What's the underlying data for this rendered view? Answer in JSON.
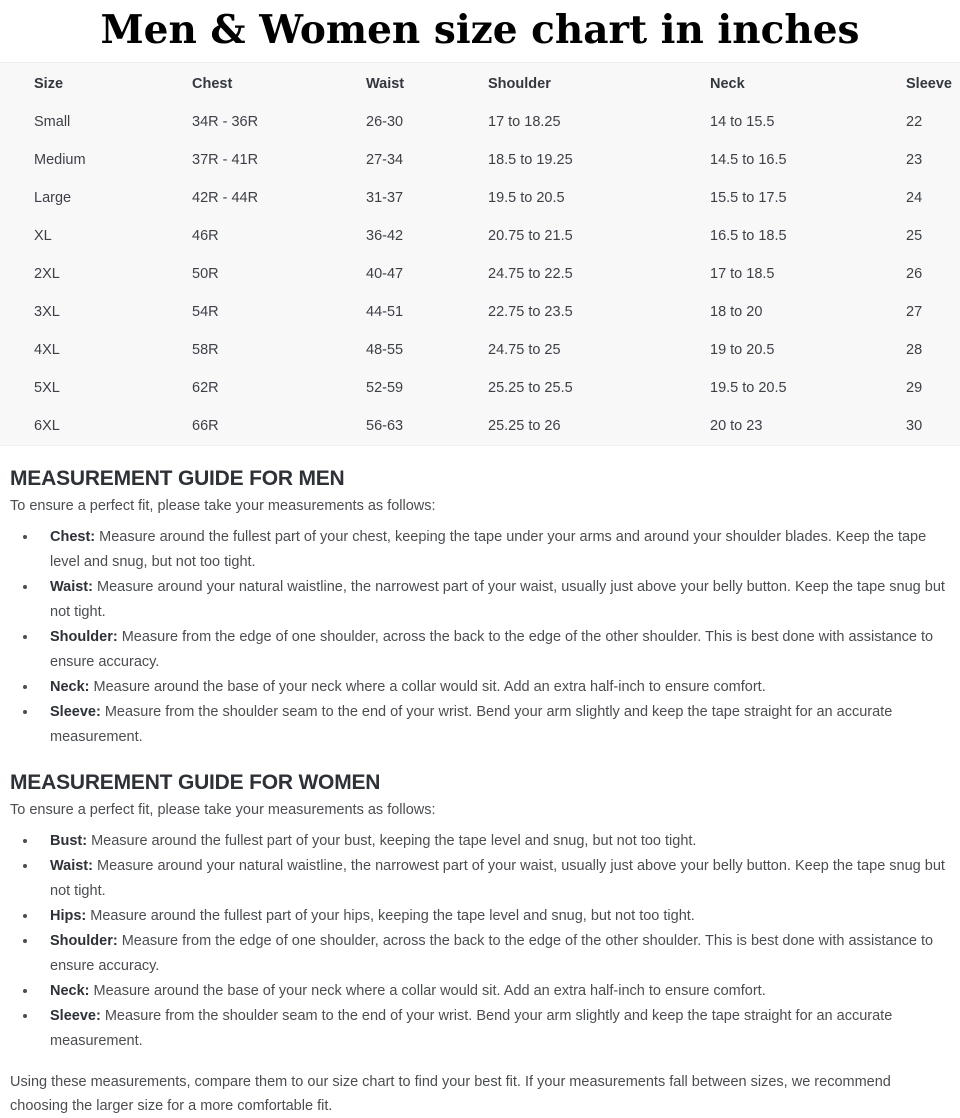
{
  "title": "Men & Women size chart in inches",
  "colors": {
    "table_background": "#f8f8f8",
    "heading_text": "#2d3138",
    "body_text": "#4a4d52",
    "title_text": "#000000"
  },
  "table": {
    "headers": [
      "Size",
      "Chest",
      "Waist",
      "Shoulder",
      "Neck",
      "Sleeve"
    ],
    "rows": [
      [
        "Small",
        "34R - 36R",
        "26-30",
        "17 to 18.25",
        "14 to 15.5",
        "22"
      ],
      [
        "Medium",
        "37R - 41R",
        "27-34",
        "18.5 to 19.25",
        "14.5 to 16.5",
        "23"
      ],
      [
        "Large",
        "42R - 44R",
        "31-37",
        "19.5 to 20.5",
        "15.5 to 17.5",
        "24"
      ],
      [
        "XL",
        "46R",
        "36-42",
        "20.75 to 21.5",
        "16.5 to 18.5",
        "25"
      ],
      [
        "2XL",
        "50R",
        "40-47",
        "24.75 to 22.5",
        "17 to 18.5",
        "26"
      ],
      [
        "3XL",
        "54R",
        "44-51",
        "22.75 to 23.5",
        "18 to 20",
        "27"
      ],
      [
        "4XL",
        "58R",
        "48-55",
        "24.75 to 25",
        "19 to 20.5",
        "28"
      ],
      [
        "5XL",
        "62R",
        "52-59",
        "25.25 to 25.5",
        "19.5 to 20.5",
        "29"
      ],
      [
        "6XL",
        "66R",
        "56-63",
        "25.25 to 26",
        "20 to 23",
        "30"
      ]
    ]
  },
  "men_guide": {
    "heading": "MEASUREMENT GUIDE FOR MEN",
    "intro": "To ensure a perfect fit, please take your measurements as follows:",
    "items": [
      {
        "label": "Chest:",
        "text": "Measure around the fullest part of your chest, keeping the tape under your arms and around your shoulder blades. Keep the tape level and snug, but not too tight."
      },
      {
        "label": "Waist:",
        "text": "Measure around your natural waistline, the narrowest part of your waist, usually just above your belly button. Keep the tape snug but not tight."
      },
      {
        "label": "Shoulder:",
        "text": "Measure from the edge of one shoulder, across the back to the edge of the other shoulder. This is best done with assistance to ensure accuracy."
      },
      {
        "label": "Neck:",
        "text": "Measure around the base of your neck where a collar would sit. Add an extra half-inch to ensure comfort."
      },
      {
        "label": "Sleeve:",
        "text": "Measure from the shoulder seam to the end of your wrist. Bend your arm slightly and keep the tape straight for an accurate measurement."
      }
    ]
  },
  "women_guide": {
    "heading": "MEASUREMENT GUIDE FOR WOMEN",
    "intro": "To ensure a perfect fit, please take your measurements as follows:",
    "items": [
      {
        "label": "Bust:",
        "text": "Measure around the fullest part of your bust, keeping the tape level and snug, but not too tight."
      },
      {
        "label": "Waist:",
        "text": "Measure around your natural waistline, the narrowest part of your waist, usually just above your belly button. Keep the tape snug but not tight."
      },
      {
        "label": "Hips:",
        "text": "Measure around the fullest part of your hips, keeping the tape level and snug, but not too tight."
      },
      {
        "label": "Shoulder:",
        "text": "Measure from the edge of one shoulder, across the back to the edge of the other shoulder. This is best done with assistance to ensure accuracy."
      },
      {
        "label": "Neck:",
        "text": "Measure around the base of your neck where a collar would sit. Add an extra half-inch to ensure comfort."
      },
      {
        "label": "Sleeve:",
        "text": "Measure from the shoulder seam to the end of your wrist. Bend your arm slightly and keep the tape straight for an accurate measurement."
      }
    ]
  },
  "footer_note": "Using these measurements, compare them to our size chart to find your best fit. If your measurements fall between sizes, we recommend choosing the larger size for a more comfortable fit."
}
